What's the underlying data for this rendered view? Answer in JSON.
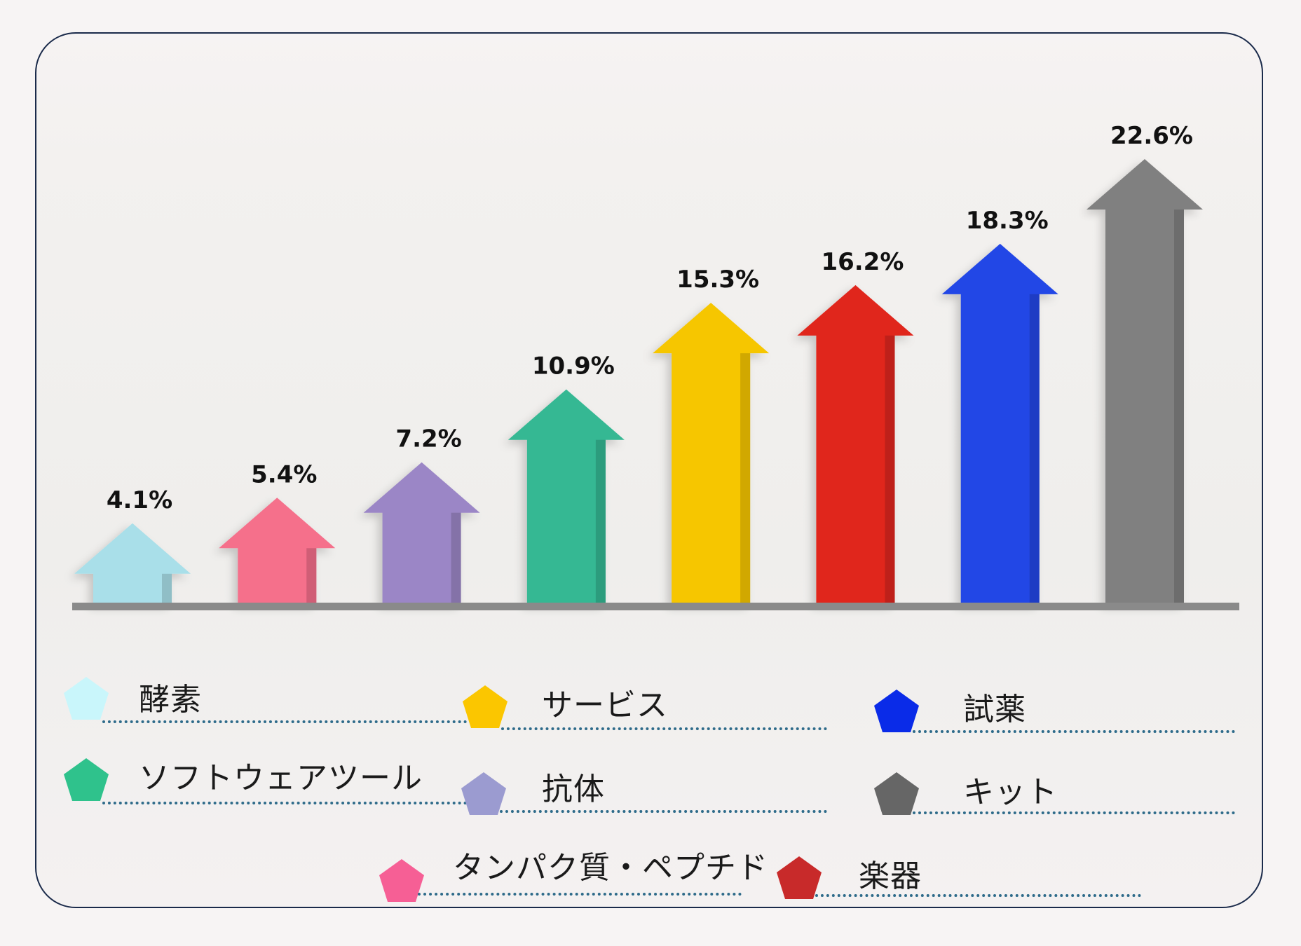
{
  "chart_data": {
    "type": "bar",
    "title": "",
    "xlabel": "",
    "ylabel": "",
    "ylim": [
      0,
      22.6
    ],
    "categories": [
      "酵素",
      "タンパク質・ペプチド",
      "抗体",
      "ソフトウェアツール",
      "サービス",
      "楽器",
      "試薬",
      "キット"
    ],
    "values": [
      4.1,
      5.4,
      7.2,
      10.9,
      15.3,
      16.2,
      18.3,
      22.6
    ],
    "value_labels": [
      "4.1%",
      "5.4%",
      "7.2%",
      "10.9%",
      "15.3%",
      "16.2%",
      "18.3%",
      "22.6%"
    ],
    "colors": [
      "#a9dfe9",
      "#f56f8b",
      "#9b86c6",
      "#34b893",
      "#f6c600",
      "#e0261f",
      "#2347e6",
      "#808080"
    ],
    "legend": [
      {
        "label": "酵素",
        "color": "#c9f6fb"
      },
      {
        "label": "サービス",
        "color": "#fbc600"
      },
      {
        "label": "試薬",
        "color": "#0a2be8"
      },
      {
        "label": "ソフトウェアツール",
        "color": "#2fc28c"
      },
      {
        "label": "抗体",
        "color": "#9b9bd0"
      },
      {
        "label": "キット",
        "color": "#666666"
      },
      {
        "label": "タンパク質・ペプチド",
        "color": "#f65f95"
      },
      {
        "label": "楽器",
        "color": "#c82a2a"
      }
    ]
  }
}
